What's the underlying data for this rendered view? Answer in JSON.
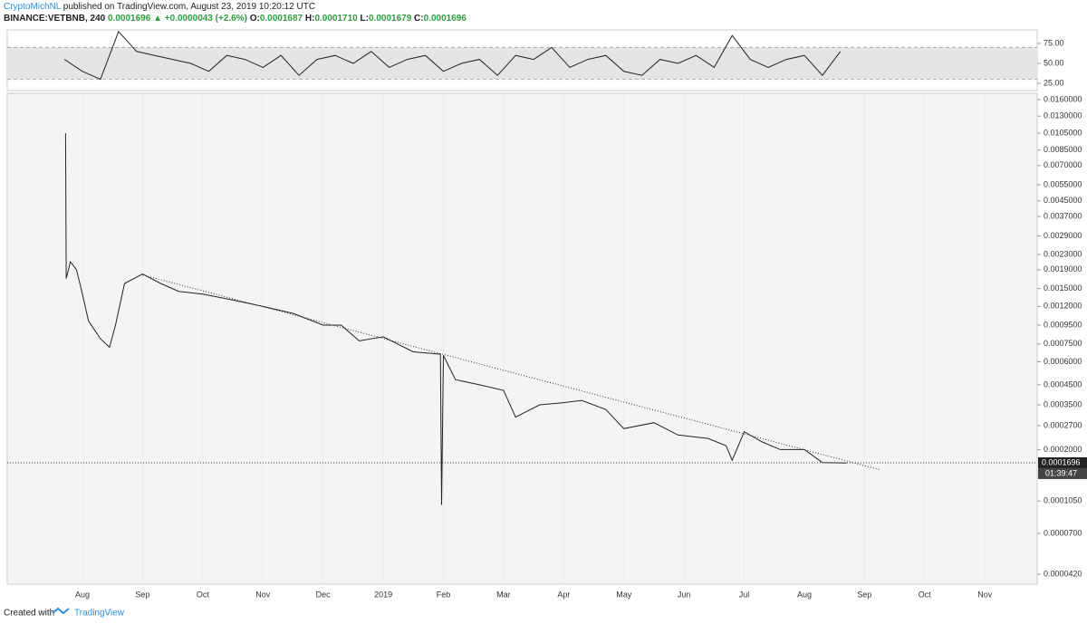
{
  "header": {
    "author": "CryptoMichNL",
    "published": " published on TradingView.com, August 23, 2019 10:20:12 UTC",
    "symbol": "BINANCE:VETBNB, 240",
    "price": "0.0001696",
    "change": "▲ +0.0000043 (+2.6%)",
    "o_label": "O:",
    "o": "0.0001687",
    "h_label": "H:",
    "h": "0.0001710",
    "l_label": "L:",
    "l": "0.0001679",
    "c_label": "C:",
    "c": "0.0001696"
  },
  "footer": {
    "created": "Created with",
    "brand": "TradingView"
  },
  "chart_data": [
    {
      "type": "line",
      "xlim": [
        -1.25,
        15.87
      ],
      "ylim": [
        15.9,
        92
      ],
      "yticks": [
        {
          "value": 75,
          "label": "75.00"
        },
        {
          "value": 50,
          "label": "50.00"
        },
        {
          "value": 25,
          "label": "25.00"
        }
      ],
      "band": [
        30,
        70
      ],
      "x": [
        -0.3,
        0,
        0.3,
        0.6,
        0.9,
        1.2,
        1.5,
        1.8,
        2.1,
        2.4,
        2.7,
        3,
        3.3,
        3.6,
        3.9,
        4.2,
        4.5,
        4.8,
        5.1,
        5.4,
        5.7,
        6,
        6.3,
        6.6,
        6.9,
        7.2,
        7.5,
        7.8,
        8.1,
        8.4,
        8.7,
        9,
        9.3,
        9.6,
        9.9,
        10.2,
        10.5,
        10.8,
        11.1,
        11.4,
        11.7,
        12,
        12.3,
        12.6
      ],
      "series": [
        {
          "color": "#222222",
          "values": [
            55,
            40,
            30,
            90,
            65,
            60,
            55,
            50,
            40,
            60,
            55,
            45,
            60,
            35,
            55,
            60,
            50,
            65,
            45,
            55,
            60,
            40,
            50,
            55,
            35,
            60,
            55,
            70,
            45,
            55,
            60,
            40,
            35,
            55,
            50,
            60,
            45,
            85,
            55,
            45,
            55,
            60,
            35,
            65
          ]
        }
      ]
    },
    {
      "type": "line",
      "log": true,
      "xlim": [
        -1.25,
        15.87
      ],
      "ylim": [
        3.71e-05,
        0.0173
      ],
      "yticks": [
        {
          "value": 0.016,
          "label": "0.0160000"
        },
        {
          "value": 0.013,
          "label": "0.0130000"
        },
        {
          "value": 0.0105,
          "label": "0.0105000"
        },
        {
          "value": 0.0085,
          "label": "0.0085000"
        },
        {
          "value": 0.007,
          "label": "0.0070000"
        },
        {
          "value": 0.0055,
          "label": "0.0055000"
        },
        {
          "value": 0.0045,
          "label": "0.0045000"
        },
        {
          "value": 0.0037,
          "label": "0.0037000"
        },
        {
          "value": 0.0029,
          "label": "0.0029000"
        },
        {
          "value": 0.0023,
          "label": "0.0023000"
        },
        {
          "value": 0.0019,
          "label": "0.0019000"
        },
        {
          "value": 0.0015,
          "label": "0.0015000"
        },
        {
          "value": 0.0012,
          "label": "0.0012000"
        },
        {
          "value": 0.00095,
          "label": "0.0009500"
        },
        {
          "value": 0.00075,
          "label": "0.0007500"
        },
        {
          "value": 0.0006,
          "label": "0.0006000"
        },
        {
          "value": 0.00045,
          "label": "0.0004500"
        },
        {
          "value": 0.00035,
          "label": "0.0003500"
        },
        {
          "value": 0.00027,
          "label": "0.0002700"
        },
        {
          "value": 0.0002,
          "label": "0.0002000"
        },
        {
          "value": 0.000105,
          "label": "0.0001050"
        },
        {
          "value": 7e-05,
          "label": "0.0000700"
        },
        {
          "value": 4.2e-05,
          "label": "0.0000420"
        }
      ],
      "xticks": [
        {
          "value": 0,
          "label": "Aug"
        },
        {
          "value": 1,
          "label": "Sep"
        },
        {
          "value": 2,
          "label": "Oct"
        },
        {
          "value": 3,
          "label": "Nov"
        },
        {
          "value": 4,
          "label": "Dec"
        },
        {
          "value": 5,
          "label": "2019"
        },
        {
          "value": 6,
          "label": "Feb"
        },
        {
          "value": 7,
          "label": "Mar"
        },
        {
          "value": 8,
          "label": "Apr"
        },
        {
          "value": 9,
          "label": "May"
        },
        {
          "value": 10,
          "label": "Jun"
        },
        {
          "value": 11,
          "label": "Jul"
        },
        {
          "value": 12,
          "label": "Aug"
        },
        {
          "value": 13,
          "label": "Sep"
        },
        {
          "value": 14,
          "label": "Oct"
        },
        {
          "value": 15,
          "label": "Nov"
        }
      ],
      "x": [
        -0.28,
        -0.27,
        -0.2,
        -0.1,
        0,
        0.1,
        0.3,
        0.45,
        0.55,
        0.7,
        1,
        1.3,
        1.6,
        2,
        2.5,
        3,
        3.5,
        4,
        4.3,
        4.6,
        5,
        5.5,
        5.95,
        5.97,
        6,
        6.2,
        6.6,
        7,
        7.2,
        7.6,
        8,
        8.3,
        8.7,
        9,
        9.5,
        9.9,
        10.4,
        10.7,
        10.8,
        11,
        11.3,
        11.6,
        12,
        12.3,
        12.7
      ],
      "series": [
        {
          "color": "#222222",
          "values": [
            0.0105,
            0.0017,
            0.0021,
            0.0019,
            0.0014,
            0.001,
            0.0008,
            0.00072,
            0.00095,
            0.0016,
            0.0018,
            0.0016,
            0.00145,
            0.0014,
            0.0013,
            0.0012,
            0.0011,
            0.00095,
            0.00095,
            0.00078,
            0.00082,
            0.00068,
            0.00066,
            0.0001,
            0.00065,
            0.00048,
            0.00045,
            0.00042,
            0.0003,
            0.00035,
            0.00036,
            0.00037,
            0.00033,
            0.00026,
            0.00028,
            0.00024,
            0.00023,
            0.00021,
            0.000175,
            0.00025,
            0.00022,
            0.0002,
            0.0002,
            0.00017,
            0.000169
          ]
        }
      ],
      "trendline": {
        "x": [
          1,
          13.27
        ],
        "values": [
          0.00178,
          0.000155
        ]
      },
      "last_price": 0.0001696,
      "countdown": "01:39:47"
    }
  ]
}
